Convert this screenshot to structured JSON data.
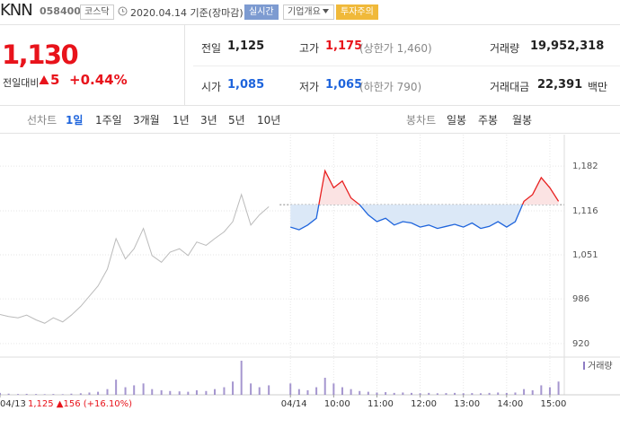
{
  "header": {
    "name": "KNN",
    "code": "058400",
    "market": "코스닥",
    "date": "2020.04.14 기준(장마감)",
    "realtime": "실시간",
    "overview": "기업개요",
    "warning": "투자주의"
  },
  "quote": {
    "price": "1,130",
    "change_label": "전일대비",
    "change": "5",
    "change_pct": "+0.44%",
    "rows": [
      [
        {
          "label": "전일",
          "value": "1,125"
        },
        {
          "label": "고가",
          "value": "1,175",
          "note": "(상한가 1,460)"
        },
        {
          "label": "거래량",
          "value": "19,952,318"
        }
      ],
      [
        {
          "label": "시가",
          "value": "1,085"
        },
        {
          "label": "저가",
          "value": "1,065",
          "note": "(하한가 790)"
        },
        {
          "label": "거래대금",
          "value": "22,391",
          "unit": "백만"
        }
      ]
    ]
  },
  "tabs": {
    "line_label": "선차트",
    "line": [
      "1일",
      "1주일",
      "3개월",
      "1년",
      "3년",
      "5년",
      "10년"
    ],
    "candle_label": "봉차트",
    "candle": [
      "일봉",
      "주봉",
      "월봉"
    ]
  },
  "chart_data": {
    "type": "line",
    "reference": 1125,
    "prev_summary": "1,125 ▲156 (+16.10%)",
    "series": [
      {
        "color": "#bbbbbb",
        "x": [
          -403,
          -391,
          -378,
          -366,
          -353,
          -341,
          -329,
          -316,
          -304,
          -291,
          -279,
          -267,
          -254,
          -242,
          -229,
          -217,
          -204,
          -192,
          -179,
          -167,
          -154,
          -142,
          -130,
          -117,
          -105,
          -92,
          -80,
          -68,
          -55,
          -43,
          -30
        ],
        "values": [
          963,
          960,
          958,
          962,
          955,
          950,
          958,
          952,
          962,
          975,
          990,
          1005,
          1030,
          1075,
          1045,
          1060,
          1090,
          1050,
          1040,
          1055,
          1060,
          1050,
          1070,
          1065,
          1075,
          1085,
          1100,
          1140,
          1095,
          1110,
          1122
        ]
      },
      {
        "color": "#1e64dc",
        "up_color": "#e82020",
        "x": [
          0,
          12,
          24,
          36,
          48,
          60,
          72,
          84,
          96,
          108,
          120,
          132,
          144,
          156,
          168,
          180,
          192,
          204,
          216,
          228,
          240,
          252,
          264,
          276,
          288,
          300,
          312,
          324,
          336,
          348,
          360,
          372
        ],
        "values": [
          1092,
          1088,
          1095,
          1105,
          1175,
          1150,
          1160,
          1135,
          1125,
          1110,
          1100,
          1105,
          1095,
          1100,
          1098,
          1092,
          1095,
          1090,
          1093,
          1096,
          1092,
          1098,
          1090,
          1093,
          1100,
          1092,
          1100,
          1130,
          1140,
          1165,
          1150,
          1130
        ]
      }
    ],
    "volume": {
      "name": "거래량",
      "color": "#8e7cc3",
      "x": [
        -403,
        -391,
        -378,
        -366,
        -353,
        -341,
        -329,
        -316,
        -304,
        -291,
        -279,
        -267,
        -254,
        -242,
        -229,
        -217,
        -204,
        -192,
        -179,
        -167,
        -154,
        -142,
        -130,
        -117,
        -105,
        -92,
        -80,
        -68,
        -55,
        -43,
        -30,
        0,
        12,
        24,
        36,
        48,
        60,
        72,
        84,
        96,
        108,
        120,
        132,
        144,
        156,
        168,
        180,
        192,
        204,
        216,
        228,
        240,
        252,
        264,
        276,
        288,
        300,
        312,
        324,
        336,
        348,
        360,
        372
      ],
      "values": [
        50000,
        30000,
        20000,
        25000,
        20000,
        15000,
        20000,
        15000,
        30000,
        40000,
        60000,
        80000,
        150000,
        400000,
        200000,
        250000,
        300000,
        150000,
        120000,
        100000,
        90000,
        80000,
        120000,
        100000,
        150000,
        200000,
        350000,
        900000,
        300000,
        200000,
        250000,
        300000,
        150000,
        120000,
        200000,
        450000,
        300000,
        200000,
        150000,
        100000,
        80000,
        60000,
        70000,
        50000,
        60000,
        50000,
        40000,
        50000,
        40000,
        45000,
        50000,
        40000,
        45000,
        40000,
        50000,
        60000,
        50000,
        60000,
        150000,
        120000,
        250000,
        200000,
        350000
      ]
    },
    "xlim": [
      -403,
      380
    ],
    "xticks": [
      {
        "value": -403,
        "label": "04/13"
      },
      {
        "value": 0,
        "label": "04/14"
      },
      {
        "value": 60,
        "label": "10:00"
      },
      {
        "value": 120,
        "label": "11:00"
      },
      {
        "value": 180,
        "label": "12:00"
      },
      {
        "value": 240,
        "label": "13:00"
      },
      {
        "value": 300,
        "label": "14:00"
      },
      {
        "value": 360,
        "label": "15:00"
      }
    ],
    "ylim": [
      900,
      1210
    ],
    "yticks": [
      {
        "value": 1182,
        "label": "1,182"
      },
      {
        "value": 1116,
        "label": "1,116"
      },
      {
        "value": 1051,
        "label": "1,051"
      },
      986,
      920
    ],
    "grid": true
  }
}
